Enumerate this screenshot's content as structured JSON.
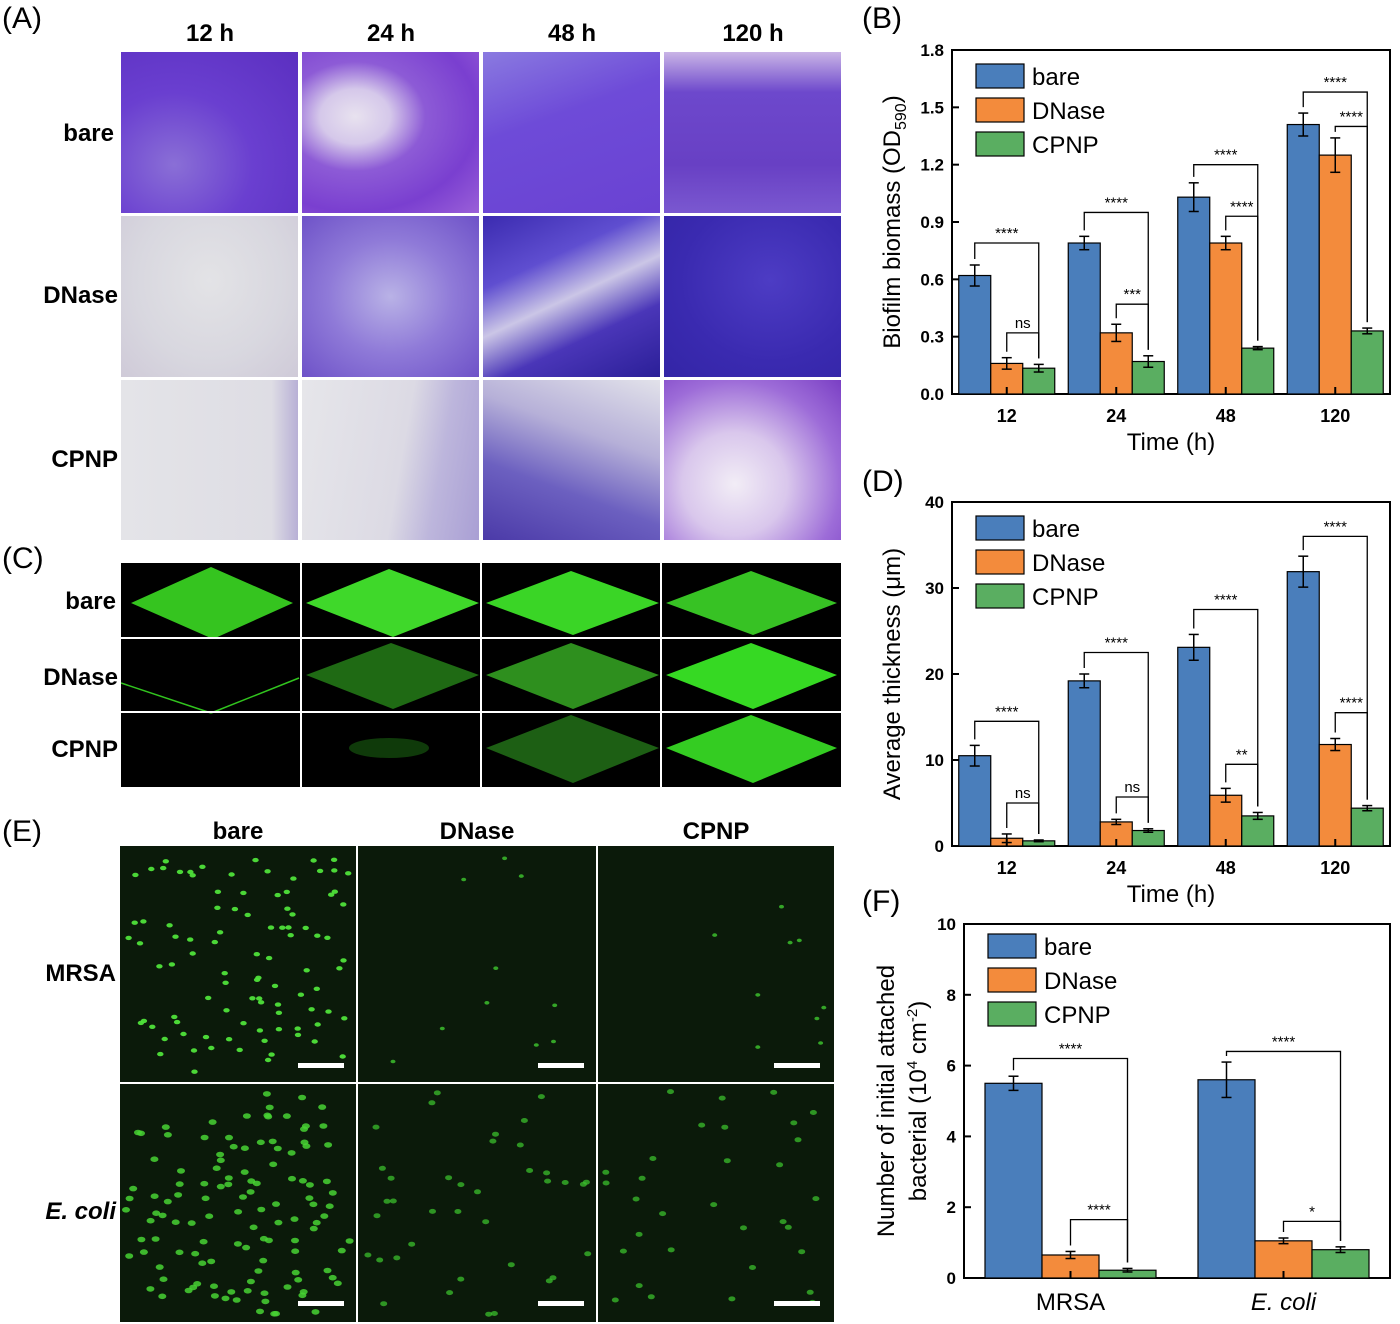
{
  "panels": {
    "A": {
      "label": "(A)",
      "columns": [
        "12 h",
        "24 h",
        "48 h",
        "120 h"
      ],
      "rows": [
        "bare",
        "DNase",
        "CPNP"
      ]
    },
    "C": {
      "label": "(C)",
      "rows": [
        "bare",
        "DNase",
        "CPNP"
      ]
    },
    "E": {
      "label": "(E)",
      "columns": [
        "bare",
        "DNase",
        "CPNP"
      ],
      "rows": [
        "MRSA",
        "E. coli"
      ]
    }
  },
  "colors": {
    "bare": "#4a7ebb",
    "DNase": "#f38b3c",
    "CPNP": "#5aae61"
  },
  "chart_data": [
    {
      "id": "B",
      "label": "(B)",
      "type": "bar",
      "categories": [
        "12",
        "24",
        "48",
        "120"
      ],
      "xlabel": "Time (h)",
      "ylabel": "Biofilm biomass (OD590)",
      "ylabel_main": "Biofilm biomass (OD",
      "ylabel_sub": "590",
      "ylabel_end": ")",
      "ylim": [
        0,
        1.8
      ],
      "yticks": [
        "0.0",
        "0.3",
        "0.6",
        "0.9",
        "1.2",
        "1.5",
        "1.8"
      ],
      "legend_position": "top-left",
      "series": [
        {
          "name": "bare",
          "values": [
            0.62,
            0.79,
            1.03,
            1.41
          ],
          "errors": [
            0.055,
            0.035,
            0.075,
            0.06
          ]
        },
        {
          "name": "DNase",
          "values": [
            0.16,
            0.32,
            0.79,
            1.25
          ],
          "errors": [
            0.03,
            0.045,
            0.035,
            0.09
          ]
        },
        {
          "name": "CPNP",
          "values": [
            0.135,
            0.17,
            0.24,
            0.33
          ],
          "errors": [
            0.02,
            0.03,
            0.008,
            0.015
          ]
        }
      ],
      "significance": [
        {
          "group": 0,
          "from": 0,
          "to": 2,
          "label": "****",
          "level": 0.79
        },
        {
          "group": 0,
          "from": 1,
          "to": 2,
          "label": "ns",
          "level": 0.32
        },
        {
          "group": 1,
          "from": 0,
          "to": 2,
          "label": "****",
          "level": 0.95
        },
        {
          "group": 1,
          "from": 1,
          "to": 2,
          "label": "***",
          "level": 0.47
        },
        {
          "group": 2,
          "from": 0,
          "to": 2,
          "label": "****",
          "level": 1.2
        },
        {
          "group": 2,
          "from": 1,
          "to": 2,
          "label": "****",
          "level": 0.93
        },
        {
          "group": 3,
          "from": 0,
          "to": 2,
          "label": "****",
          "level": 1.58
        },
        {
          "group": 3,
          "from": 1,
          "to": 2,
          "label": "****",
          "level": 1.4
        }
      ]
    },
    {
      "id": "D",
      "label": "(D)",
      "type": "bar",
      "categories": [
        "12",
        "24",
        "48",
        "120"
      ],
      "xlabel": "Time (h)",
      "ylabel": "Average thickness (μm)",
      "ylim": [
        0,
        40
      ],
      "yticks": [
        "0",
        "10",
        "20",
        "30",
        "40"
      ],
      "legend_position": "top-left",
      "series": [
        {
          "name": "bare",
          "values": [
            10.5,
            19.2,
            23.1,
            31.9
          ],
          "errors": [
            1.2,
            0.8,
            1.5,
            1.8
          ]
        },
        {
          "name": "DNase",
          "values": [
            0.9,
            2.8,
            5.9,
            11.8
          ],
          "errors": [
            0.5,
            0.3,
            0.8,
            0.7
          ]
        },
        {
          "name": "CPNP",
          "values": [
            0.6,
            1.8,
            3.5,
            4.4
          ],
          "errors": [
            0.1,
            0.2,
            0.4,
            0.3
          ]
        }
      ],
      "significance": [
        {
          "group": 0,
          "from": 0,
          "to": 2,
          "label": "****",
          "level": 14.5
        },
        {
          "group": 0,
          "from": 1,
          "to": 2,
          "label": "ns",
          "level": 5.0
        },
        {
          "group": 1,
          "from": 0,
          "to": 2,
          "label": "****",
          "level": 22.5
        },
        {
          "group": 1,
          "from": 1,
          "to": 2,
          "label": "ns",
          "level": 5.7
        },
        {
          "group": 2,
          "from": 0,
          "to": 2,
          "label": "****",
          "level": 27.5
        },
        {
          "group": 2,
          "from": 1,
          "to": 2,
          "label": "**",
          "level": 9.5
        },
        {
          "group": 3,
          "from": 0,
          "to": 2,
          "label": "****",
          "level": 36.0
        },
        {
          "group": 3,
          "from": 1,
          "to": 2,
          "label": "****",
          "level": 15.5
        }
      ]
    },
    {
      "id": "F",
      "label": "(F)",
      "type": "bar",
      "categories": [
        "MRSA",
        "E. coli"
      ],
      "category_italic": [
        false,
        true
      ],
      "xlabel": "",
      "ylabel": "Number of initial attached bacterial (10^4 cm^-2)",
      "ylabel_line1": "Number of initial attached",
      "ylabel_line2_main": "bacterial (10",
      "ylabel_line2_sup1": "4",
      "ylabel_line2_mid": " cm",
      "ylabel_line2_sup2": "-2",
      "ylabel_line2_end": ")",
      "ylim": [
        0,
        10
      ],
      "yticks": [
        "0",
        "2",
        "4",
        "6",
        "8",
        "10"
      ],
      "legend_position": "top-left",
      "series": [
        {
          "name": "bare",
          "values": [
            5.5,
            5.6
          ],
          "errors": [
            0.2,
            0.5
          ]
        },
        {
          "name": "DNase",
          "values": [
            0.65,
            1.05
          ],
          "errors": [
            0.1,
            0.08
          ]
        },
        {
          "name": "CPNP",
          "values": [
            0.22,
            0.8
          ],
          "errors": [
            0.05,
            0.08
          ]
        }
      ],
      "significance": [
        {
          "group": 0,
          "from": 0,
          "to": 2,
          "label": "****",
          "level": 6.2
        },
        {
          "group": 0,
          "from": 1,
          "to": 2,
          "label": "****",
          "level": 1.65
        },
        {
          "group": 1,
          "from": 0,
          "to": 2,
          "label": "****",
          "level": 6.4
        },
        {
          "group": 1,
          "from": 1,
          "to": 2,
          "label": "*",
          "level": 1.6
        }
      ]
    }
  ]
}
